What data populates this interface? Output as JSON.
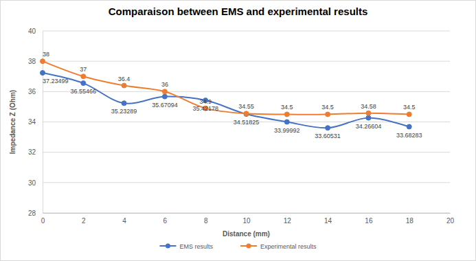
{
  "chart_data": {
    "type": "line",
    "title": "Comparaison between EMS and experimental results",
    "x_label": "Distance (mm)",
    "y_label": "Impedance Z (Ohm)",
    "x": [
      0,
      2,
      4,
      6,
      8,
      10,
      12,
      14,
      16,
      18
    ],
    "series": [
      {
        "name": "EMS results",
        "color": "#4472c4",
        "marker": "circle",
        "line_style": "smooth",
        "values": [
          37.23499,
          36.55466,
          35.23289,
          35.67094,
          35.42178,
          34.51825,
          33.99992,
          33.60531,
          34.26604,
          33.68283
        ]
      },
      {
        "name": "Experimental results",
        "color": "#ed7d31",
        "marker": "circle",
        "line_style": "smooth",
        "values": [
          38,
          37,
          36.4,
          36,
          34.9,
          34.55,
          34.5,
          34.5,
          34.58,
          34.5
        ]
      }
    ],
    "xlim": [
      0,
      20
    ],
    "xticks": [
      0,
      2,
      4,
      6,
      8,
      10,
      12,
      14,
      16,
      18,
      20
    ],
    "ylim": [
      28,
      40
    ],
    "yticks": [
      28,
      30,
      32,
      34,
      36,
      38,
      40
    ],
    "grid": true,
    "legend": "bottom",
    "data_labels": true
  }
}
